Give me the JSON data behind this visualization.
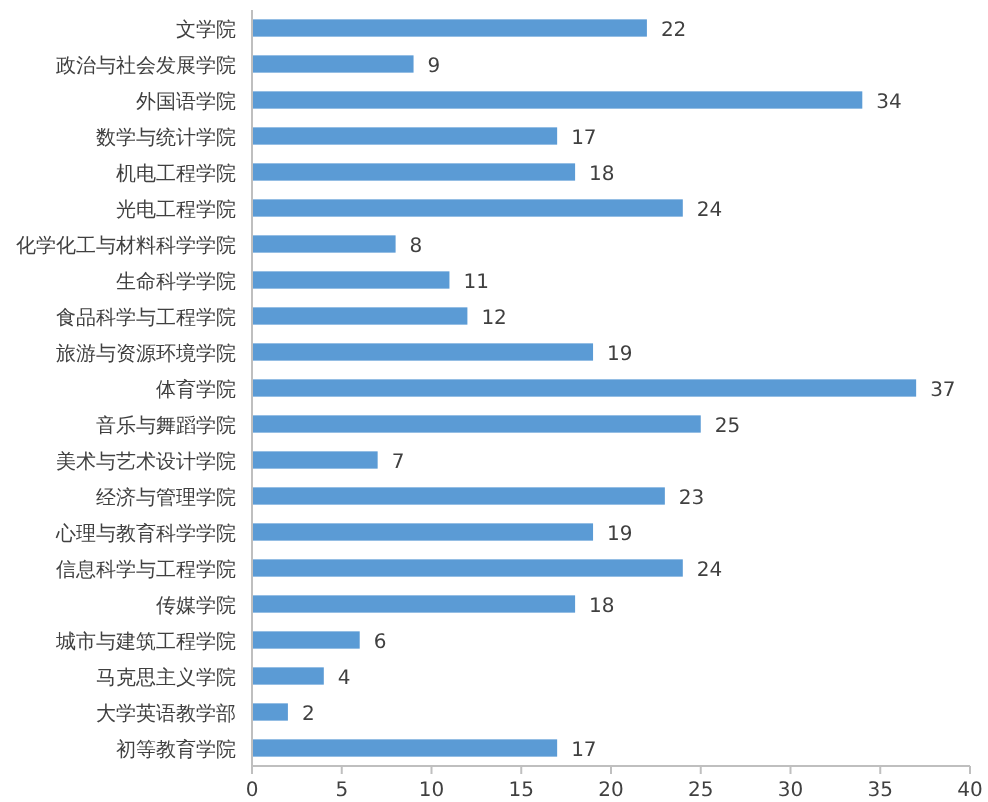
{
  "chart_data": {
    "type": "bar",
    "orientation": "horizontal",
    "categories": [
      "文学院",
      "政治与社会发展学院",
      "外国语学院",
      "数学与统计学院",
      "机电工程学院",
      "光电工程学院",
      "化学化工与材料科学学院",
      "生命科学学院",
      "食品科学与工程学院",
      "旅游与资源环境学院",
      "体育学院",
      "音乐与舞蹈学院",
      "美术与艺术设计学院",
      "经济与管理学院",
      "心理与教育科学学院",
      "信息科学与工程学院",
      "传媒学院",
      "城市与建筑工程学院",
      "马克思主义学院",
      "大学英语教学部",
      "初等教育学院"
    ],
    "values": [
      22,
      9,
      34,
      17,
      18,
      24,
      8,
      11,
      12,
      19,
      37,
      25,
      7,
      23,
      19,
      24,
      18,
      6,
      4,
      2,
      17
    ],
    "color": "#5b9bd5",
    "xlim": [
      0,
      40
    ],
    "xticks": [
      0,
      5,
      10,
      15,
      20,
      25,
      30,
      35,
      40
    ],
    "data_labels": true
  }
}
